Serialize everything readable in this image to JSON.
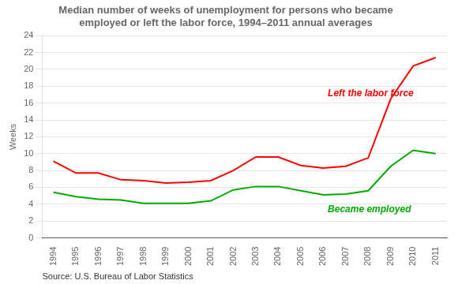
{
  "chart_data": {
    "type": "line",
    "title": [
      "Median number of weeks of unemployment for persons who became",
      "employed or left the labor force, 1994–2011 annual averages"
    ],
    "y_label": "Weeks",
    "source": "Source: U.S. Bureau of Labor Statistics",
    "x": [
      1994,
      1995,
      1996,
      1997,
      1998,
      1999,
      2000,
      2001,
      2002,
      2003,
      2004,
      2005,
      2006,
      2007,
      2008,
      2009,
      2010,
      2011
    ],
    "series": [
      {
        "name": "Left the labor force",
        "color": "#FF0000",
        "values": [
          9.1,
          7.7,
          7.7,
          6.9,
          6.8,
          6.5,
          6.6,
          6.8,
          8.0,
          9.6,
          9.6,
          8.6,
          8.3,
          8.5,
          9.5,
          16.5,
          20.4,
          21.4
        ]
      },
      {
        "name": "Became employed",
        "color": "#00AA00",
        "values": [
          5.4,
          4.9,
          4.6,
          4.5,
          4.1,
          4.1,
          4.1,
          4.4,
          5.7,
          6.1,
          6.1,
          5.6,
          5.1,
          5.2,
          5.6,
          8.5,
          10.4,
          10.0
        ]
      }
    ],
    "annotations": [
      {
        "text": "Left the labor force",
        "x": 2006.2,
        "y": 16.8,
        "color": "#FF0000"
      },
      {
        "text": "Became employed",
        "x": 2006.2,
        "y": 3.0,
        "color": "#00AA00"
      }
    ],
    "xlim": [
      1993.5,
      2011.5
    ],
    "xticks": [
      1994,
      1995,
      1996,
      1997,
      1998,
      1999,
      2000,
      2001,
      2002,
      2003,
      2004,
      2005,
      2006,
      2007,
      2008,
      2009,
      2010,
      2011
    ],
    "ylim": [
      0,
      24
    ],
    "yticks": [
      0,
      2,
      4,
      6,
      8,
      10,
      12,
      14,
      16,
      18,
      20,
      22,
      24
    ],
    "grid": "y"
  }
}
